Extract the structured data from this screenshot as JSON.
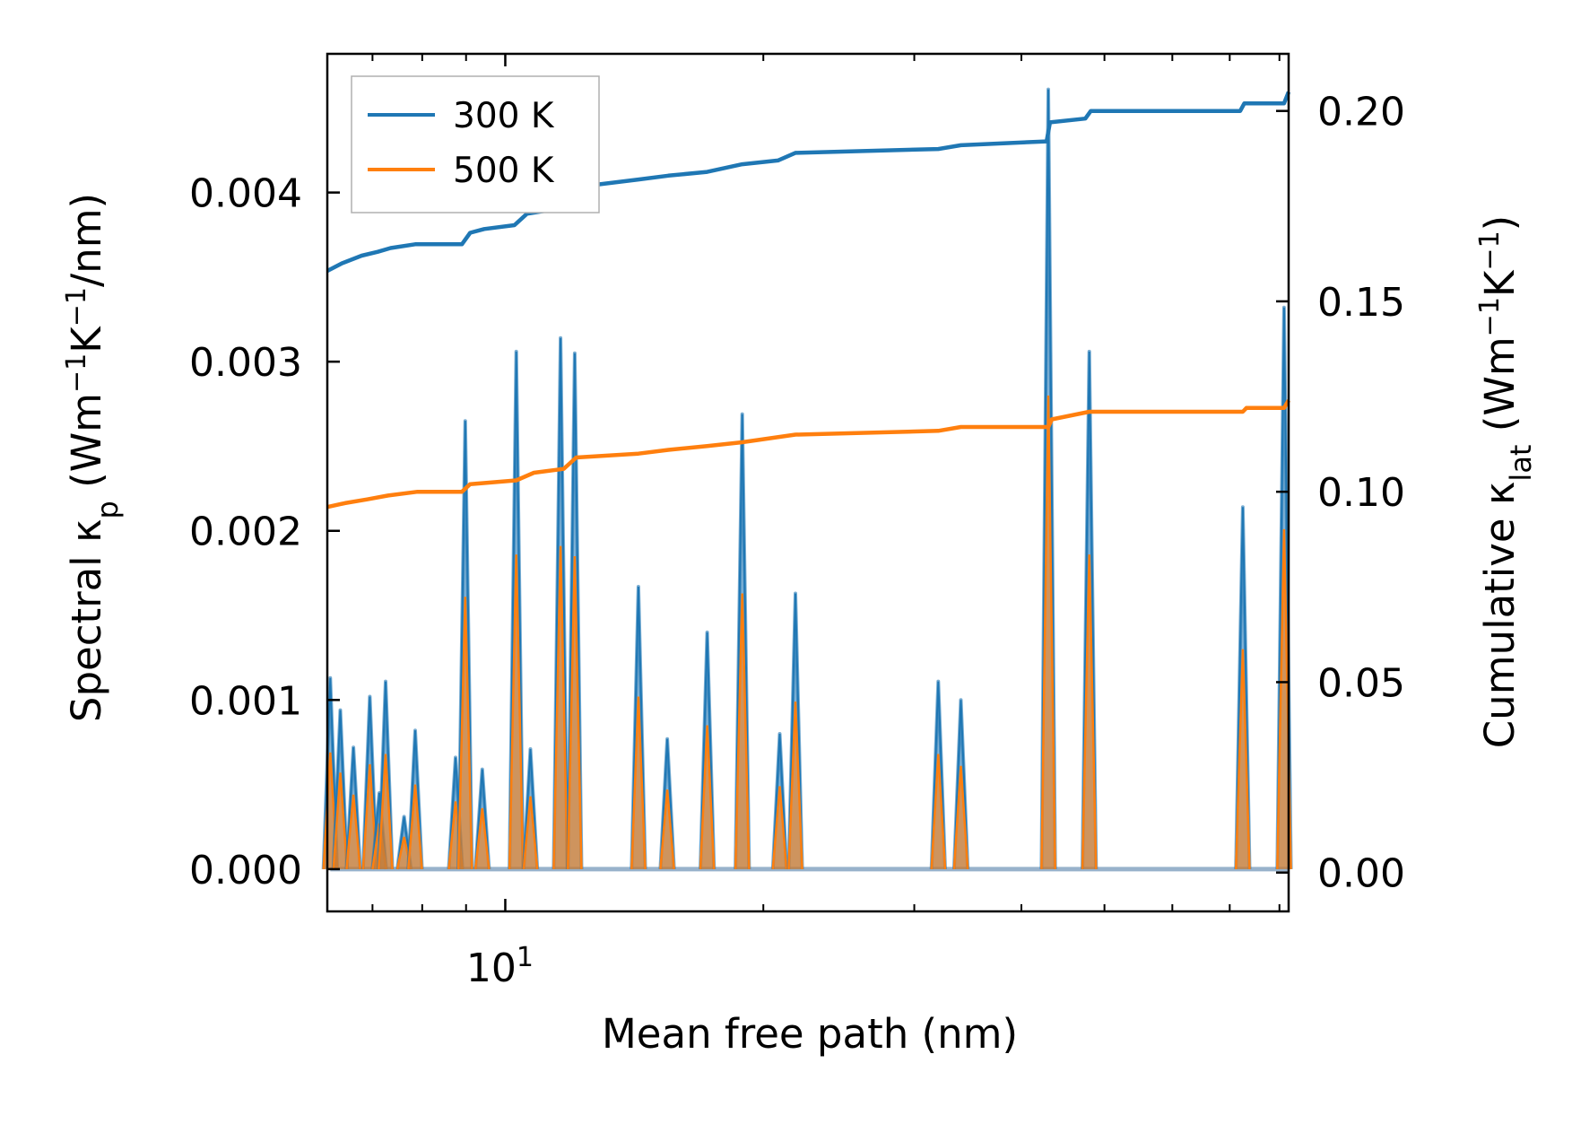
{
  "chart_data": {
    "type": "line",
    "x_scale": "log",
    "xlabel": "Mean free path (nm)",
    "ylabel_left": "Spectral κ_p (Wm⁻¹K⁻¹/nm)",
    "ylabel_right": "Cumulative κ_lat (Wm⁻¹K⁻¹)",
    "xlim": [
      6.2,
      82
    ],
    "ylim_left": [
      -0.00025,
      0.00482
    ],
    "ylim_right": [
      -0.0102,
      0.215
    ],
    "x_major_ticks": [
      {
        "value": 10,
        "label_base": "10",
        "label_exp": "1"
      }
    ],
    "x_minor_ticks": [
      7,
      8,
      9,
      20,
      30,
      40,
      50,
      60,
      70,
      80
    ],
    "y_left_ticks": [
      {
        "value": 0.0,
        "label": "0.000"
      },
      {
        "value": 0.001,
        "label": "0.001"
      },
      {
        "value": 0.002,
        "label": "0.002"
      },
      {
        "value": 0.003,
        "label": "0.003"
      },
      {
        "value": 0.004,
        "label": "0.004"
      }
    ],
    "y_right_ticks": [
      {
        "value": 0.0,
        "label": "0.00"
      },
      {
        "value": 0.05,
        "label": "0.05"
      },
      {
        "value": 0.1,
        "label": "0.10"
      },
      {
        "value": 0.15,
        "label": "0.15"
      },
      {
        "value": 0.2,
        "label": "0.20"
      }
    ],
    "legend": {
      "position": "upper-left",
      "entries": [
        {
          "label": "300 K",
          "color": "#1f77b4"
        },
        {
          "label": "500 K",
          "color": "#ff7f0e"
        }
      ]
    },
    "spectral_peaks": [
      {
        "x": 6.25,
        "k300": 0.00113,
        "k500": 0.00069
      },
      {
        "x": 6.42,
        "k300": 0.00094,
        "k500": 0.00057
      },
      {
        "x": 6.65,
        "k300": 0.00072,
        "k500": 0.00044
      },
      {
        "x": 6.95,
        "k300": 0.00102,
        "k500": 0.00062
      },
      {
        "x": 7.13,
        "k300": 0.00045,
        "k500": 0.00027
      },
      {
        "x": 7.25,
        "k300": 0.00111,
        "k500": 0.00068
      },
      {
        "x": 7.62,
        "k300": 0.00031,
        "k500": 0.00019
      },
      {
        "x": 7.85,
        "k300": 0.00082,
        "k500": 0.0005
      },
      {
        "x": 8.75,
        "k300": 0.00066,
        "k500": 0.0004
      },
      {
        "x": 8.98,
        "k300": 0.00265,
        "k500": 0.00161
      },
      {
        "x": 9.4,
        "k300": 0.00059,
        "k500": 0.00036
      },
      {
        "x": 10.3,
        "k300": 0.00306,
        "k500": 0.00186
      },
      {
        "x": 10.7,
        "k300": 0.00071,
        "k500": 0.00043
      },
      {
        "x": 11.6,
        "k300": 0.00314,
        "k500": 0.00191
      },
      {
        "x": 12.05,
        "k300": 0.00305,
        "k500": 0.00185
      },
      {
        "x": 14.3,
        "k300": 0.00167,
        "k500": 0.00102
      },
      {
        "x": 15.45,
        "k300": 0.00077,
        "k500": 0.00047
      },
      {
        "x": 17.2,
        "k300": 0.0014,
        "k500": 0.00085
      },
      {
        "x": 18.9,
        "k300": 0.00269,
        "k500": 0.00163
      },
      {
        "x": 20.9,
        "k300": 0.0008,
        "k500": 0.00049
      },
      {
        "x": 21.8,
        "k300": 0.00163,
        "k500": 0.00099
      },
      {
        "x": 32.0,
        "k300": 0.00111,
        "k500": 0.00068
      },
      {
        "x": 34.0,
        "k300": 0.001,
        "k500": 0.00061
      },
      {
        "x": 43.0,
        "k300": 0.00461,
        "k500": 0.0028
      },
      {
        "x": 48.0,
        "k300": 0.00306,
        "k500": 0.00186
      },
      {
        "x": 72.5,
        "k300": 0.00214,
        "k500": 0.0013
      },
      {
        "x": 81.0,
        "k300": 0.00332,
        "k500": 0.00201
      }
    ],
    "series": [
      {
        "name": "300 K",
        "color": "#1f77b4",
        "axis": "right",
        "type": "step-line",
        "points": [
          [
            6.2,
            0.158
          ],
          [
            6.45,
            0.16
          ],
          [
            6.8,
            0.162
          ],
          [
            7.1,
            0.163
          ],
          [
            7.35,
            0.164
          ],
          [
            7.85,
            0.165
          ],
          [
            8.9,
            0.165
          ],
          [
            9.1,
            0.168
          ],
          [
            9.45,
            0.169
          ],
          [
            10.25,
            0.17
          ],
          [
            10.6,
            0.173
          ],
          [
            11.3,
            0.174
          ],
          [
            11.7,
            0.177
          ],
          [
            12.1,
            0.18
          ],
          [
            14.3,
            0.182
          ],
          [
            15.5,
            0.183
          ],
          [
            17.2,
            0.184
          ],
          [
            18.9,
            0.186
          ],
          [
            20.8,
            0.187
          ],
          [
            21.8,
            0.189
          ],
          [
            32.0,
            0.19
          ],
          [
            34.0,
            0.191
          ],
          [
            42.8,
            0.192
          ],
          [
            43.2,
            0.197
          ],
          [
            47.5,
            0.198
          ],
          [
            48.2,
            0.2
          ],
          [
            72.0,
            0.2
          ],
          [
            72.8,
            0.202
          ],
          [
            81.0,
            0.202
          ],
          [
            82.0,
            0.205
          ]
        ]
      },
      {
        "name": "500 K",
        "color": "#ff7f0e",
        "axis": "right",
        "type": "step-line",
        "points": [
          [
            6.2,
            0.096
          ],
          [
            6.5,
            0.097
          ],
          [
            6.9,
            0.098
          ],
          [
            7.3,
            0.099
          ],
          [
            7.9,
            0.1
          ],
          [
            8.9,
            0.1
          ],
          [
            9.1,
            0.102
          ],
          [
            10.3,
            0.103
          ],
          [
            10.8,
            0.105
          ],
          [
            11.7,
            0.106
          ],
          [
            12.1,
            0.109
          ],
          [
            14.3,
            0.11
          ],
          [
            15.5,
            0.111
          ],
          [
            17.2,
            0.112
          ],
          [
            18.9,
            0.113
          ],
          [
            21.8,
            0.115
          ],
          [
            32.0,
            0.116
          ],
          [
            34.0,
            0.117
          ],
          [
            43.0,
            0.117
          ],
          [
            43.4,
            0.119
          ],
          [
            48.0,
            0.121
          ],
          [
            72.5,
            0.121
          ],
          [
            73.2,
            0.122
          ],
          [
            81.0,
            0.122
          ],
          [
            82.0,
            0.124
          ]
        ]
      }
    ]
  }
}
